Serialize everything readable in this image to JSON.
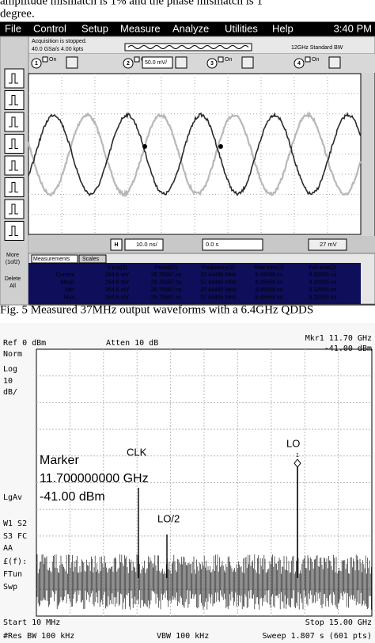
{
  "paper_text": {
    "line_1": "amplitude mismatch is 1% and the phase mismatch is 1",
    "line_2": "degree."
  },
  "scope": {
    "menu": [
      "File",
      "Control",
      "Setup",
      "Measure",
      "Analyze",
      "Utilities",
      "Help"
    ],
    "time": "3:40 PM",
    "status": "Acquisition is stopped.",
    "sample_rate": "40.0 GSa/s   4.00 kpts",
    "bandwidth": "12GHz Standard BW",
    "channels": [
      {
        "number": "1",
        "state": "On"
      },
      {
        "number": "2",
        "state": "On",
        "scale": "50.0 mV/"
      },
      {
        "number": "3",
        "state": "On"
      },
      {
        "number": "4",
        "state": "On"
      }
    ],
    "more_button": [
      "More",
      "(1of2)"
    ],
    "delete_button": [
      "Delete",
      "All"
    ],
    "timebase": "10.0 ns/",
    "delay": "0.0 s",
    "trigger_level": "27 mV",
    "tabs": [
      "Measurements",
      "Scales"
    ],
    "measurements": {
      "columns": [
        "V p-p(2)",
        "Period(2)",
        "Frequency(2)",
        "Rise time(2)",
        "Fall time(2)"
      ],
      "rows": [
        {
          "label": "Current",
          "cells": [
            "264.6 mV",
            "26.70587 ns",
            "37.44495 MHz",
            "8.45658 ns",
            "8.32005 ns"
          ]
        },
        {
          "label": "Mean",
          "cells": [
            "264.6 mV",
            "26.70587 ns",
            "37.44495 MHz",
            "8.45658 ns",
            "8.32005 ns"
          ]
        },
        {
          "label": "Min",
          "cells": [
            "264.6 mV",
            "26.70587 ns",
            "37.44495 MHz",
            "8.45658 ns",
            "8.32005 ns"
          ]
        },
        {
          "label": "Max",
          "cells": [
            "264.6 mV",
            "26.70587 ns",
            "37.44495 MHz",
            "8.45658 ns",
            "8.32005 ns"
          ]
        }
      ]
    }
  },
  "caption": "Fig. 5 Measured 37MHz output waveforms with a 6.4GHz QDDS",
  "analyzer": {
    "marker_header": "Mkr1  11.70 GHz",
    "reference": "Ref 0 dBm",
    "attenuation": "Atten 10 dB",
    "marker_level": "-41.00 dBm",
    "side_labels": [
      "Norm",
      "Log",
      "10",
      "dB/",
      "LgAv",
      "W1  S2",
      "S3  FC",
      "AA",
      "£(f):",
      "FTun",
      "Swp"
    ],
    "marker_box": [
      "Marker",
      "11.700000000 GHz",
      "-41.00 dBm"
    ],
    "annotations": {
      "clk": "CLK",
      "lo_half": "LO/2",
      "lo": "LO",
      "marker_number": "1"
    },
    "start": "Start 10 MHz",
    "stop": "Stop 15.00 GHz",
    "res_bw": "#Res BW 100 kHz",
    "vbw": "VBW 100 kHz",
    "sweep": "Sweep 1.807 s (601 pts)"
  }
}
